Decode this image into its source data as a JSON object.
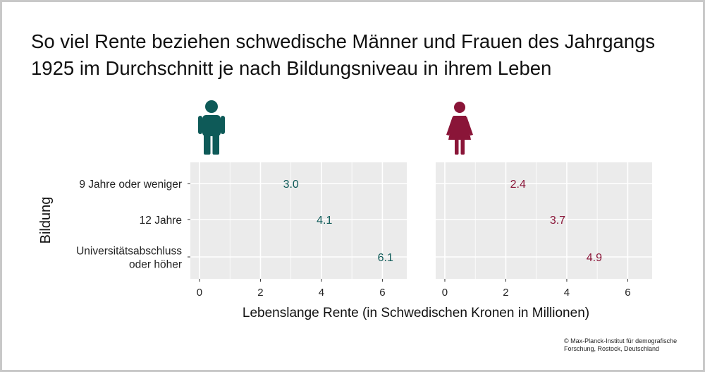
{
  "title": "So viel Rente beziehen schwedische Männer und Frauen des Jahrgangs 1925 im Durchschnitt je nach Bildungsniveau in ihrem Leben",
  "credit_lines": [
    "© Max-Planck-Institut für demografische",
    "Forschung, Rostock, Deutschland"
  ],
  "colors": {
    "men": "#0e5a58",
    "women": "#8a1538",
    "panel": "#ebebeb",
    "grid": "#ffffff"
  },
  "icons": {
    "men": "man-icon",
    "women": "woman-icon"
  },
  "chart_data": {
    "type": "scatter",
    "title": "So viel Rente beziehen schwedische Männer und Frauen des Jahrgangs 1925 im Durchschnitt je nach Bildungsniveau in ihrem Leben",
    "xlabel": "Lebenslange Rente (in Schwedischen Kronen in Millionen)",
    "ylabel": "Bildung",
    "categories": [
      "9 Jahre oder weniger",
      "12 Jahre",
      "Universitätsabschluss oder höher"
    ],
    "category_lines": [
      [
        "9 Jahre oder weniger"
      ],
      [
        "12 Jahre"
      ],
      [
        "Universitätsabschluss",
        "oder höher"
      ]
    ],
    "xlim": [
      -0.3,
      6.8
    ],
    "xticks": [
      0,
      2,
      4,
      6
    ],
    "grid": true,
    "panels": [
      {
        "icon": "man-icon",
        "color": "#0e5a58",
        "values": [
          3.0,
          4.1,
          6.1
        ],
        "labels": [
          "3.0",
          "4.1",
          "6.1"
        ]
      },
      {
        "icon": "woman-icon",
        "color": "#8a1538",
        "values": [
          2.4,
          3.7,
          4.9
        ],
        "labels": [
          "2.4",
          "3.7",
          "4.9"
        ]
      }
    ]
  }
}
